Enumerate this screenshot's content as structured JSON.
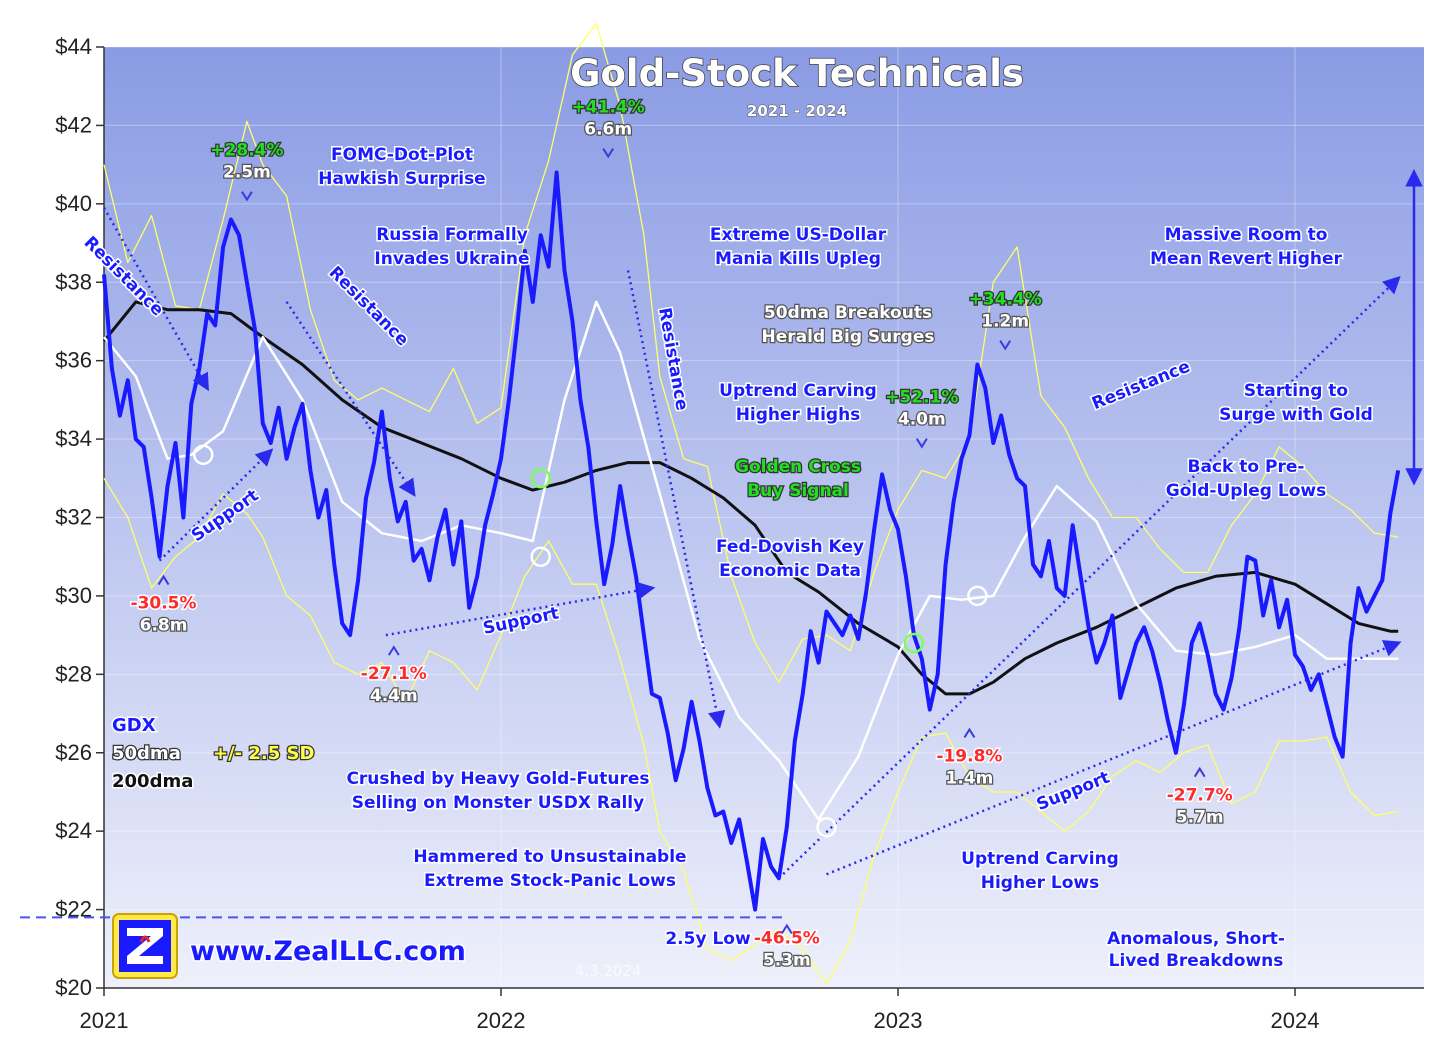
{
  "chart_data": {
    "type": "line",
    "title": "Gold-Stock Technicals",
    "subtitle": "2021 - 2024",
    "date_stamp": "4.3.2024",
    "website": "www.ZealLLC.com",
    "ylim": [
      20,
      44
    ],
    "y_ticks": [
      "$20",
      "$22",
      "$24",
      "$26",
      "$28",
      "$30",
      "$32",
      "$34",
      "$36",
      "$38",
      "$40",
      "$42",
      "$44"
    ],
    "x_ticks": [
      "2021",
      "2022",
      "2023",
      "2024"
    ],
    "xlim": [
      2021.0,
      2024.32
    ],
    "legend": {
      "gdx": "GDX",
      "dma50": "50dma",
      "sd": "+/- 2.5 SD",
      "dma200": "200dma",
      "placement": "left"
    },
    "colors": {
      "gdx": "#1a1aff",
      "dma50": "#ffffff",
      "dma200": "#111111",
      "sd_bands": "#ffff66",
      "background_top": "#8f9fe6",
      "background_bottom": "#e8ecfb"
    },
    "series": [
      {
        "name": "GDX",
        "x": [
          2021.0,
          2021.02,
          2021.04,
          2021.06,
          2021.08,
          2021.1,
          2021.12,
          2021.14,
          2021.16,
          2021.18,
          2021.2,
          2021.22,
          2021.24,
          2021.26,
          2021.28,
          2021.3,
          2021.32,
          2021.34,
          2021.36,
          2021.38,
          2021.4,
          2021.42,
          2021.44,
          2021.46,
          2021.48,
          2021.5,
          2021.52,
          2021.54,
          2021.56,
          2021.58,
          2021.6,
          2021.62,
          2021.64,
          2021.66,
          2021.68,
          2021.7,
          2021.72,
          2021.74,
          2021.76,
          2021.78,
          2021.8,
          2021.82,
          2021.84,
          2021.86,
          2021.88,
          2021.9,
          2021.92,
          2021.94,
          2021.96,
          2021.98,
          2022.0,
          2022.02,
          2022.04,
          2022.06,
          2022.08,
          2022.1,
          2022.12,
          2022.14,
          2022.16,
          2022.18,
          2022.2,
          2022.22,
          2022.24,
          2022.26,
          2022.28,
          2022.3,
          2022.32,
          2022.34,
          2022.36,
          2022.38,
          2022.4,
          2022.42,
          2022.44,
          2022.46,
          2022.48,
          2022.5,
          2022.52,
          2022.54,
          2022.56,
          2022.58,
          2022.6,
          2022.62,
          2022.64,
          2022.66,
          2022.68,
          2022.7,
          2022.72,
          2022.74,
          2022.76,
          2022.78,
          2022.8,
          2022.82,
          2022.84,
          2022.86,
          2022.88,
          2022.9,
          2022.92,
          2022.94,
          2022.96,
          2022.98,
          2023.0,
          2023.02,
          2023.04,
          2023.06,
          2023.08,
          2023.1,
          2023.12,
          2023.14,
          2023.16,
          2023.18,
          2023.2,
          2023.22,
          2023.24,
          2023.26,
          2023.28,
          2023.3,
          2023.32,
          2023.34,
          2023.36,
          2023.38,
          2023.4,
          2023.42,
          2023.44,
          2023.46,
          2023.48,
          2023.5,
          2023.52,
          2023.54,
          2023.56,
          2023.58,
          2023.6,
          2023.62,
          2023.64,
          2023.66,
          2023.68,
          2023.7,
          2023.72,
          2023.74,
          2023.76,
          2023.78,
          2023.8,
          2023.82,
          2023.84,
          2023.86,
          2023.88,
          2023.9,
          2023.92,
          2023.94,
          2023.96,
          2023.98,
          2024.0,
          2024.02,
          2024.04,
          2024.06,
          2024.08,
          2024.1,
          2024.12,
          2024.14,
          2024.16,
          2024.18,
          2024.2,
          2024.22,
          2024.24,
          2024.26
        ],
        "values": [
          38.2,
          35.8,
          34.6,
          35.5,
          34.0,
          33.8,
          32.5,
          31.0,
          32.8,
          33.9,
          32.0,
          34.9,
          35.8,
          37.2,
          36.9,
          38.9,
          39.6,
          39.2,
          38.0,
          36.8,
          34.4,
          33.9,
          34.8,
          33.5,
          34.3,
          34.9,
          33.2,
          32.0,
          32.7,
          30.8,
          29.3,
          29.0,
          30.4,
          32.5,
          33.4,
          34.7,
          33.0,
          31.9,
          32.4,
          30.9,
          31.2,
          30.4,
          31.5,
          32.2,
          30.8,
          31.9,
          29.7,
          30.5,
          31.8,
          32.6,
          33.5,
          35.0,
          36.8,
          38.8,
          37.5,
          39.2,
          38.4,
          40.8,
          38.3,
          37.0,
          35.0,
          33.8,
          31.9,
          30.3,
          31.3,
          32.8,
          31.6,
          30.5,
          29.0,
          27.5,
          27.4,
          26.5,
          25.3,
          26.1,
          27.3,
          26.3,
          25.1,
          24.4,
          24.5,
          23.7,
          24.3,
          23.2,
          22.0,
          23.8,
          23.1,
          22.8,
          24.1,
          26.3,
          27.5,
          29.1,
          28.3,
          29.6,
          29.3,
          29.0,
          29.5,
          28.9,
          30.1,
          31.7,
          33.1,
          32.2,
          31.7,
          30.5,
          29.0,
          28.4,
          27.1,
          28.0,
          30.8,
          32.4,
          33.5,
          34.1,
          35.9,
          35.3,
          33.9,
          34.6,
          33.6,
          33.0,
          32.8,
          30.8,
          30.5,
          31.4,
          30.2,
          30.0,
          31.8,
          30.5,
          29.2,
          28.3,
          28.8,
          29.5,
          27.4,
          28.1,
          28.8,
          29.2,
          28.6,
          27.8,
          26.8,
          26.0,
          27.2,
          28.8,
          29.3,
          28.5,
          27.5,
          27.1,
          27.9,
          29.2,
          31.0,
          30.9,
          29.5,
          30.4,
          29.2,
          29.9,
          28.5,
          28.2,
          27.6,
          28.0,
          27.2,
          26.4,
          25.9,
          28.8,
          30.2,
          29.6,
          30.0,
          30.4,
          32.1,
          33.2
        ],
        "note": "approximate daily closing prices read from chart"
      },
      {
        "name": "50dma",
        "x": [
          2021.0,
          2021.08,
          2021.16,
          2021.22,
          2021.3,
          2021.4,
          2021.5,
          2021.6,
          2021.7,
          2021.8,
          2021.9,
          2022.0,
          2022.08,
          2022.16,
          2022.24,
          2022.3,
          2022.4,
          2022.5,
          2022.6,
          2022.7,
          2022.8,
          2022.9,
          2023.0,
          2023.08,
          2023.16,
          2023.24,
          2023.32,
          2023.4,
          2023.5,
          2023.6,
          2023.7,
          2023.8,
          2023.9,
          2024.0,
          2024.08,
          2024.16,
          2024.24,
          2024.26
        ],
        "values": [
          36.6,
          35.6,
          33.5,
          33.6,
          34.2,
          36.6,
          35.0,
          32.4,
          31.6,
          31.4,
          31.8,
          31.6,
          31.4,
          35.0,
          37.5,
          36.2,
          32.6,
          28.9,
          26.9,
          25.8,
          24.3,
          25.9,
          28.5,
          30.0,
          29.9,
          30.0,
          31.5,
          32.8,
          31.9,
          29.8,
          28.6,
          28.5,
          28.7,
          29.0,
          28.4,
          28.4,
          28.4,
          28.4
        ]
      },
      {
        "name": "200dma",
        "x": [
          2021.0,
          2021.08,
          2021.16,
          2021.24,
          2021.32,
          2021.4,
          2021.5,
          2021.6,
          2021.7,
          2021.8,
          2021.9,
          2022.0,
          2022.08,
          2022.16,
          2022.24,
          2022.32,
          2022.4,
          2022.48,
          2022.56,
          2022.64,
          2022.72,
          2022.8,
          2022.9,
          2023.0,
          2023.06,
          2023.12,
          2023.18,
          2023.24,
          2023.32,
          2023.4,
          2023.5,
          2023.6,
          2023.7,
          2023.8,
          2023.9,
          2024.0,
          2024.08,
          2024.16,
          2024.24,
          2024.26
        ],
        "values": [
          36.5,
          37.5,
          37.3,
          37.3,
          37.2,
          36.6,
          35.9,
          35.0,
          34.3,
          33.9,
          33.5,
          33.0,
          32.7,
          32.9,
          33.2,
          33.4,
          33.4,
          33.0,
          32.5,
          31.8,
          30.6,
          30.1,
          29.3,
          28.7,
          28.0,
          27.5,
          27.5,
          27.8,
          28.4,
          28.8,
          29.2,
          29.7,
          30.2,
          30.5,
          30.6,
          30.3,
          29.8,
          29.3,
          29.1,
          29.1
        ]
      },
      {
        "name": "+2.5 SD",
        "x": [
          2021.0,
          2021.06,
          2021.12,
          2021.18,
          2021.24,
          2021.3,
          2021.36,
          2021.4,
          2021.46,
          2021.52,
          2021.58,
          2021.64,
          2021.7,
          2021.76,
          2021.82,
          2021.88,
          2021.94,
          2022.0,
          2022.06,
          2022.12,
          2022.18,
          2022.24,
          2022.3,
          2022.36,
          2022.4,
          2022.46,
          2022.52,
          2022.58,
          2022.64,
          2022.7,
          2022.76,
          2022.82,
          2022.88,
          2022.94,
          2023.0,
          2023.06,
          2023.12,
          2023.18,
          2023.24,
          2023.3,
          2023.36,
          2023.42,
          2023.48,
          2023.54,
          2023.6,
          2023.66,
          2023.72,
          2023.78,
          2023.84,
          2023.9,
          2023.96,
          2024.02,
          2024.08,
          2024.14,
          2024.2,
          2024.26
        ],
        "values": [
          41.0,
          38.5,
          39.7,
          37.4,
          37.3,
          39.6,
          42.1,
          41.0,
          40.2,
          37.3,
          35.5,
          35.0,
          35.3,
          35.0,
          34.7,
          35.8,
          34.4,
          34.8,
          39.2,
          41.1,
          43.8,
          44.6,
          42.5,
          39.2,
          35.6,
          33.5,
          33.3,
          30.5,
          28.8,
          27.8,
          28.9,
          29.0,
          28.6,
          30.6,
          32.2,
          33.2,
          33.0,
          34.0,
          38.0,
          38.9,
          35.1,
          34.3,
          33.0,
          32.0,
          32.0,
          31.2,
          30.6,
          30.6,
          31.8,
          32.6,
          33.8,
          33.3,
          32.6,
          32.2,
          31.6,
          31.5
        ]
      },
      {
        "name": "-2.5 SD",
        "x": [
          2021.0,
          2021.06,
          2021.12,
          2021.18,
          2021.24,
          2021.3,
          2021.36,
          2021.4,
          2021.46,
          2021.52,
          2021.58,
          2021.64,
          2021.7,
          2021.76,
          2021.82,
          2021.88,
          2021.94,
          2022.0,
          2022.06,
          2022.12,
          2022.18,
          2022.24,
          2022.3,
          2022.36,
          2022.4,
          2022.46,
          2022.52,
          2022.58,
          2022.64,
          2022.7,
          2022.76,
          2022.82,
          2022.88,
          2022.94,
          2023.0,
          2023.06,
          2023.12,
          2023.18,
          2023.24,
          2023.3,
          2023.36,
          2023.42,
          2023.48,
          2023.54,
          2023.6,
          2023.66,
          2023.72,
          2023.78,
          2023.84,
          2023.9,
          2023.96,
          2024.02,
          2024.08,
          2024.14,
          2024.2,
          2024.26
        ],
        "values": [
          33.0,
          32.0,
          30.2,
          31.0,
          31.5,
          32.6,
          32.1,
          31.5,
          30.0,
          29.5,
          28.3,
          28.0,
          28.3,
          27.3,
          28.6,
          28.3,
          27.6,
          29.0,
          30.5,
          31.4,
          30.3,
          30.3,
          28.4,
          26.2,
          24.0,
          23.0,
          21.0,
          20.7,
          21.1,
          21.5,
          21.0,
          20.1,
          21.2,
          23.4,
          25.0,
          26.4,
          26.5,
          25.4,
          25.0,
          25.0,
          24.5,
          24.0,
          24.5,
          25.4,
          25.8,
          25.5,
          26.0,
          26.2,
          24.7,
          25.0,
          26.3,
          26.3,
          26.4,
          25.0,
          24.4,
          24.5
        ]
      }
    ],
    "annotations": [
      {
        "text": "FOMC-Dot-Plot",
        "color": "blue"
      },
      {
        "text": "Hawkish Surprise",
        "color": "blue"
      },
      {
        "text": "Russia Formally",
        "color": "blue"
      },
      {
        "text": "Invades Ukraine",
        "color": "blue"
      },
      {
        "text": "Extreme US-Dollar",
        "color": "blue"
      },
      {
        "text": "Mania Kills Upleg",
        "color": "blue"
      },
      {
        "text": "50dma Breakouts",
        "color": "grey"
      },
      {
        "text": "Herald Big Surges",
        "color": "grey"
      },
      {
        "text": "Uptrend Carving",
        "color": "blue"
      },
      {
        "text": "Higher Highs",
        "color": "blue"
      },
      {
        "text": "Golden Cross",
        "color": "green"
      },
      {
        "text": "Buy Signal",
        "color": "green"
      },
      {
        "text": "Fed-Dovish Key",
        "color": "blue"
      },
      {
        "text": "Economic Data",
        "color": "blue"
      },
      {
        "text": "Massive Room to",
        "color": "blue"
      },
      {
        "text": "Mean Revert Higher",
        "color": "blue"
      },
      {
        "text": "Starting to",
        "color": "blue"
      },
      {
        "text": "Surge with Gold",
        "color": "blue"
      },
      {
        "text": "Back to Pre-",
        "color": "blue"
      },
      {
        "text": "Gold-Upleg Lows",
        "color": "blue"
      },
      {
        "text": "Crushed by Heavy Gold-Futures",
        "color": "blue"
      },
      {
        "text": "Selling on Monster USDX Rally",
        "color": "blue"
      },
      {
        "text": "Hammered to Unsustainable",
        "color": "blue"
      },
      {
        "text": "Extreme Stock-Panic Lows",
        "color": "blue"
      },
      {
        "text": "2.5y Low",
        "color": "blue"
      },
      {
        "text": "Uptrend Carving",
        "color": "blue"
      },
      {
        "text": "Higher Lows",
        "color": "blue"
      },
      {
        "text": "Anomalous, Short-",
        "color": "blue"
      },
      {
        "text": "Lived Breakdowns",
        "color": "blue"
      },
      {
        "text": "Resistance",
        "color": "blue"
      },
      {
        "text": "Resistance",
        "color": "blue"
      },
      {
        "text": "Resistance",
        "color": "blue"
      },
      {
        "text": "Resistance",
        "color": "blue"
      },
      {
        "text": "Support",
        "color": "blue"
      },
      {
        "text": "Support",
        "color": "blue"
      },
      {
        "text": "Support",
        "color": "blue"
      }
    ],
    "point_labels": [
      {
        "pct": "+28.4%",
        "span": "2.5m",
        "x": 2021.36,
        "y": 39.8
      },
      {
        "pct": "+41.4%",
        "span": "6.6m",
        "x": 2022.27,
        "y": 40.9
      },
      {
        "pct": "+34.4%",
        "span": "1.2m",
        "x": 2023.27,
        "y": 36.0
      },
      {
        "pct": "+52.1%",
        "span": "4.0m",
        "x": 2023.06,
        "y": 33.5
      },
      {
        "pct": "-30.5%",
        "span": "6.8m",
        "x": 2021.15,
        "y": 30.8
      },
      {
        "pct": "-27.1%",
        "span": "4.4m",
        "x": 2021.73,
        "y": 29.0
      },
      {
        "pct": "-46.5%",
        "span": "5.3m",
        "x": 2022.72,
        "y": 21.9
      },
      {
        "pct": "-19.8%",
        "span": "1.4m",
        "x": 2023.18,
        "y": 26.9
      },
      {
        "pct": "-27.7%",
        "span": "5.7m",
        "x": 2023.76,
        "y": 25.9
      }
    ]
  }
}
